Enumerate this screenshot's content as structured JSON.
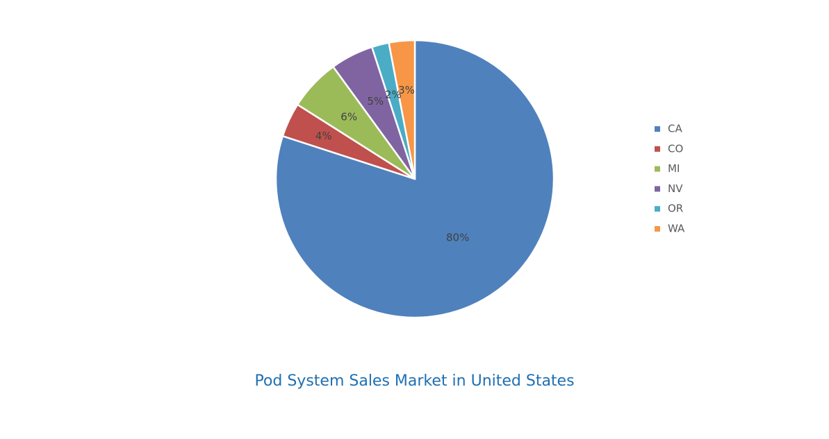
{
  "chart_data": {
    "type": "pie",
    "title": "Pod System Sales Market in United States",
    "categories": [
      "CA",
      "CO",
      "MI",
      "NV",
      "OR",
      "WA"
    ],
    "values": [
      80,
      4,
      6,
      5,
      2,
      3
    ],
    "labels": [
      "80%",
      "4%",
      "6%",
      "5%",
      "2%",
      "3%"
    ],
    "colors": [
      "#4f81bd",
      "#c0504d",
      "#9bbb59",
      "#8064a2",
      "#4bacc6",
      "#f79646"
    ],
    "legend": {
      "position": "right",
      "entries": [
        "CA",
        "CO",
        "MI",
        "NV",
        "OR",
        "WA"
      ]
    }
  }
}
